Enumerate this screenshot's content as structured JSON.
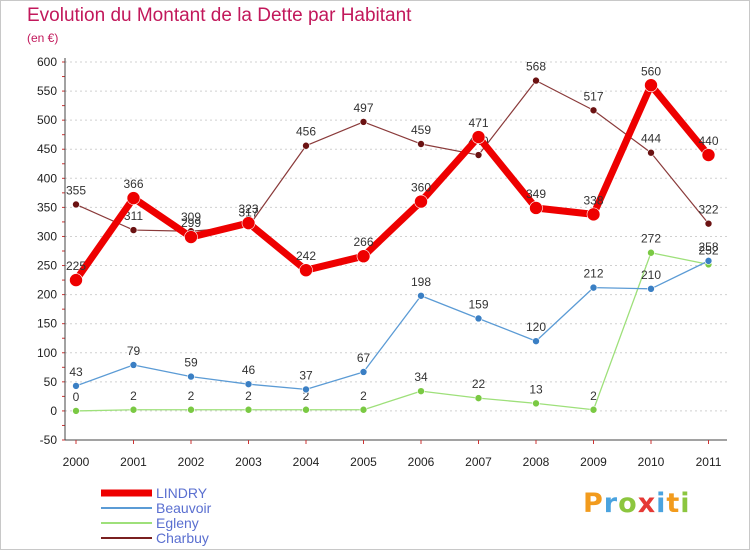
{
  "title": "Evolution du Montant de la Dette par Habitant",
  "subtitle": "(en €)",
  "logo": "Proxiti",
  "colors": {
    "title": "#c2185b",
    "LINDRY": "#ee0000",
    "Beauvoir": "#5b9bd5",
    "Egleny": "#9ee07a",
    "Charbuy": "#7a2020"
  },
  "chart_data": {
    "type": "line",
    "title": "Evolution du Montant de la Dette par Habitant",
    "ylabel": "(en €)",
    "xlabel": "",
    "x": [
      "2000",
      "2001",
      "2002",
      "2003",
      "2004",
      "2005",
      "2006",
      "2007",
      "2008",
      "2009",
      "2010",
      "2011"
    ],
    "ylim": [
      -50,
      600
    ],
    "yticks": [
      -50,
      0,
      50,
      100,
      150,
      200,
      250,
      300,
      350,
      400,
      450,
      500,
      550,
      600
    ],
    "grid": "horizontal dashed",
    "legend": "bottom-left",
    "series": [
      {
        "name": "Charbuy",
        "values": [
          355,
          311,
          309,
          317,
          456,
          497,
          459,
          440,
          568,
          517,
          444,
          322
        ]
      },
      {
        "name": "Egleny",
        "values": [
          0,
          2,
          2,
          2,
          2,
          2,
          34,
          22,
          13,
          2,
          272,
          252
        ]
      },
      {
        "name": "Beauvoir",
        "values": [
          43,
          79,
          59,
          46,
          37,
          67,
          198,
          159,
          120,
          212,
          210,
          258
        ]
      },
      {
        "name": "LINDRY",
        "values": [
          225,
          366,
          299,
          323,
          242,
          266,
          360,
          471,
          349,
          338,
          560,
          440
        ]
      }
    ]
  }
}
